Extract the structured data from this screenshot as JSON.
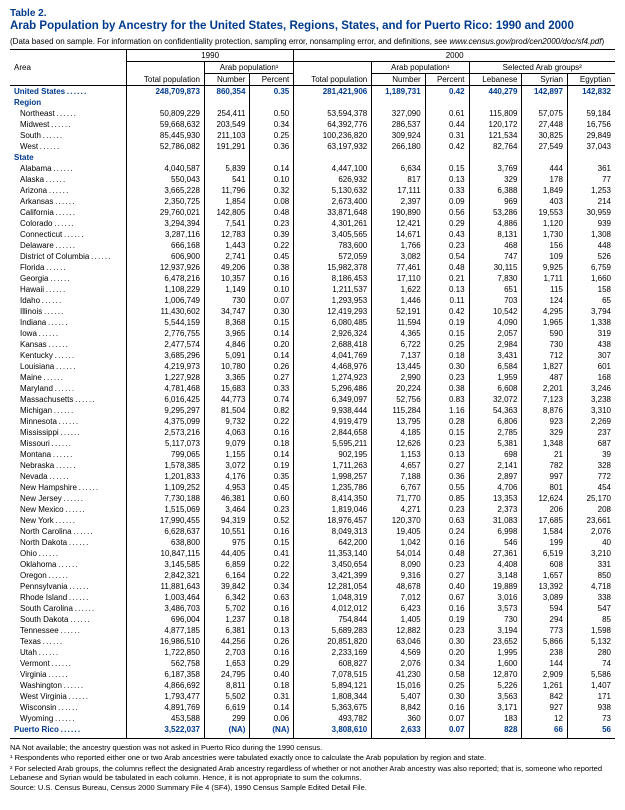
{
  "header": {
    "table_num": "Table 2.",
    "title": "Arab Population by Ancestry for the United States, Regions, States, and for Puerto Rico: 1990 and 2000",
    "subnote_prefix": "(Data based on sample. For information on confidentiality protection, sampling error, nonsampling error, and definitions, see ",
    "subnote_link": "www.census.gov/prod/cen2000/doc/sf4.pdf",
    "subnote_suffix": ")"
  },
  "column_headers": {
    "area": "Area",
    "y1990": "1990",
    "y2000": "2000",
    "arab_pop": "Arab population¹",
    "sel_groups": "Selected Arab groups²",
    "total_pop": "Total population",
    "number": "Number",
    "percent": "Percent",
    "lebanese": "Lebanese",
    "syrian": "Syrian",
    "egyptian": "Egyptian"
  },
  "total_row": {
    "label": "United States",
    "v": [
      "248,709,873",
      "860,354",
      "0.35",
      "281,421,906",
      "1,189,731",
      "0.42",
      "440,279",
      "142,897",
      "142,832"
    ]
  },
  "sections": [
    {
      "label": "Region",
      "rows": [
        {
          "label": "Northeast",
          "v": [
            "50,809,229",
            "254,411",
            "0.50",
            "53,594,378",
            "327,090",
            "0.61",
            "115,809",
            "57,075",
            "59,184"
          ]
        },
        {
          "label": "Midwest",
          "v": [
            "59,668,632",
            "203,549",
            "0.34",
            "64,392,776",
            "286,537",
            "0.44",
            "120,172",
            "27,448",
            "16,756"
          ]
        },
        {
          "label": "South",
          "v": [
            "85,445,930",
            "211,103",
            "0.25",
            "100,236,820",
            "309,924",
            "0.31",
            "121,534",
            "30,825",
            "29,849"
          ]
        },
        {
          "label": "West",
          "v": [
            "52,786,082",
            "191,291",
            "0.36",
            "63,197,932",
            "266,180",
            "0.42",
            "82,764",
            "27,549",
            "37,043"
          ]
        }
      ]
    },
    {
      "label": "State",
      "rows": [
        {
          "label": "Alabama",
          "v": [
            "4,040,587",
            "5,839",
            "0.14",
            "4,447,100",
            "6,634",
            "0.15",
            "3,769",
            "444",
            "361"
          ]
        },
        {
          "label": "Alaska",
          "v": [
            "550,043",
            "541",
            "0.10",
            "626,932",
            "817",
            "0.13",
            "329",
            "178",
            "77"
          ]
        },
        {
          "label": "Arizona",
          "v": [
            "3,665,228",
            "11,796",
            "0.32",
            "5,130,632",
            "17,111",
            "0.33",
            "6,388",
            "1,849",
            "1,253"
          ]
        },
        {
          "label": "Arkansas",
          "v": [
            "2,350,725",
            "1,854",
            "0.08",
            "2,673,400",
            "2,397",
            "0.09",
            "969",
            "403",
            "214"
          ]
        },
        {
          "label": "California",
          "v": [
            "29,760,021",
            "142,805",
            "0.48",
            "33,871,648",
            "190,890",
            "0.56",
            "53,286",
            "19,553",
            "30,959"
          ]
        },
        {
          "label": "Colorado",
          "v": [
            "3,294,394",
            "7,541",
            "0.23",
            "4,301,261",
            "12,421",
            "0.29",
            "4,886",
            "1,120",
            "939"
          ]
        },
        {
          "label": "Connecticut",
          "v": [
            "3,287,116",
            "12,783",
            "0.39",
            "3,405,565",
            "14,671",
            "0.43",
            "8,131",
            "1,730",
            "1,308"
          ]
        },
        {
          "label": "Delaware",
          "v": [
            "666,168",
            "1,443",
            "0.22",
            "783,600",
            "1,766",
            "0.23",
            "468",
            "156",
            "448"
          ]
        },
        {
          "label": "District of Columbia",
          "v": [
            "606,900",
            "2,741",
            "0.45",
            "572,059",
            "3,082",
            "0.54",
            "747",
            "109",
            "526"
          ]
        },
        {
          "label": "Florida",
          "v": [
            "12,937,926",
            "49,206",
            "0.38",
            "15,982,378",
            "77,461",
            "0.48",
            "30,115",
            "9,925",
            "6,759"
          ]
        },
        {
          "label": "Georgia",
          "v": [
            "6,478,216",
            "10,357",
            "0.16",
            "8,186,453",
            "17,110",
            "0.21",
            "7,830",
            "1,711",
            "1,660"
          ]
        },
        {
          "label": "Hawaii",
          "v": [
            "1,108,229",
            "1,149",
            "0.10",
            "1,211,537",
            "1,622",
            "0.13",
            "651",
            "115",
            "158"
          ]
        },
        {
          "label": "Idaho",
          "v": [
            "1,006,749",
            "730",
            "0.07",
            "1,293,953",
            "1,446",
            "0.11",
            "703",
            "124",
            "65"
          ]
        },
        {
          "label": "Illinois",
          "v": [
            "11,430,602",
            "34,747",
            "0.30",
            "12,419,293",
            "52,191",
            "0.42",
            "10,542",
            "4,295",
            "3,794"
          ]
        },
        {
          "label": "Indiana",
          "v": [
            "5,544,159",
            "8,368",
            "0.15",
            "6,080,485",
            "11,594",
            "0.19",
            "4,090",
            "1,965",
            "1,338"
          ]
        },
        {
          "label": "Iowa",
          "v": [
            "2,776,755",
            "3,965",
            "0.14",
            "2,926,324",
            "4,365",
            "0.15",
            "2,057",
            "590",
            "319"
          ]
        },
        {
          "label": "Kansas",
          "v": [
            "2,477,574",
            "4,846",
            "0.20",
            "2,688,418",
            "6,722",
            "0.25",
            "2,984",
            "730",
            "438"
          ]
        },
        {
          "label": "Kentucky",
          "v": [
            "3,685,296",
            "5,091",
            "0.14",
            "4,041,769",
            "7,137",
            "0.18",
            "3,431",
            "712",
            "307"
          ]
        },
        {
          "label": "Louisiana",
          "v": [
            "4,219,973",
            "10,780",
            "0.26",
            "4,468,976",
            "13,445",
            "0.30",
            "6,584",
            "1,827",
            "601"
          ]
        },
        {
          "label": "Maine",
          "v": [
            "1,227,928",
            "3,365",
            "0.27",
            "1,274,923",
            "2,990",
            "0.23",
            "1,959",
            "487",
            "168"
          ]
        },
        {
          "label": "Maryland",
          "v": [
            "4,781,468",
            "15,683",
            "0.33",
            "5,296,486",
            "20,224",
            "0.38",
            "6,608",
            "2,201",
            "3,246"
          ]
        },
        {
          "label": "Massachusetts",
          "v": [
            "6,016,425",
            "44,773",
            "0.74",
            "6,349,097",
            "52,756",
            "0.83",
            "32,072",
            "7,123",
            "3,238"
          ]
        },
        {
          "label": "Michigan",
          "v": [
            "9,295,297",
            "81,504",
            "0.82",
            "9,938,444",
            "115,284",
            "1.16",
            "54,363",
            "8,876",
            "3,310"
          ]
        },
        {
          "label": "Minnesota",
          "v": [
            "4,375,099",
            "9,732",
            "0.22",
            "4,919,479",
            "13,795",
            "0.28",
            "6,806",
            "923",
            "2,269"
          ]
        },
        {
          "label": "Mississippi",
          "v": [
            "2,573,216",
            "4,063",
            "0.16",
            "2,844,658",
            "4,185",
            "0.15",
            "2,785",
            "329",
            "237"
          ]
        },
        {
          "label": "Missouri",
          "v": [
            "5,117,073",
            "9,079",
            "0.18",
            "5,595,211",
            "12,626",
            "0.23",
            "5,381",
            "1,348",
            "687"
          ]
        },
        {
          "label": "Montana",
          "v": [
            "799,065",
            "1,155",
            "0.14",
            "902,195",
            "1,153",
            "0.13",
            "698",
            "21",
            "39"
          ]
        },
        {
          "label": "Nebraska",
          "v": [
            "1,578,385",
            "3,072",
            "0.19",
            "1,711,263",
            "4,657",
            "0.27",
            "2,141",
            "782",
            "328"
          ]
        },
        {
          "label": "Nevada",
          "v": [
            "1,201,833",
            "4,176",
            "0.35",
            "1,998,257",
            "7,188",
            "0.36",
            "2,897",
            "997",
            "772"
          ]
        },
        {
          "label": "New Hampshire",
          "v": [
            "1,109,252",
            "4,953",
            "0.45",
            "1,235,786",
            "6,767",
            "0.55",
            "4,706",
            "801",
            "454"
          ]
        },
        {
          "label": "New Jersey",
          "v": [
            "7,730,188",
            "46,381",
            "0.60",
            "8,414,350",
            "71,770",
            "0.85",
            "13,353",
            "12,624",
            "25,170"
          ]
        },
        {
          "label": "New Mexico",
          "v": [
            "1,515,069",
            "3,464",
            "0.23",
            "1,819,046",
            "4,271",
            "0.23",
            "2,373",
            "206",
            "208"
          ]
        },
        {
          "label": "New York",
          "v": [
            "17,990,455",
            "94,319",
            "0.52",
            "18,976,457",
            "120,370",
            "0.63",
            "31,083",
            "17,685",
            "23,661"
          ]
        },
        {
          "label": "North Carolina",
          "v": [
            "6,628,637",
            "10,551",
            "0.16",
            "8,049,313",
            "19,405",
            "0.24",
            "6,998",
            "1,584",
            "2,076"
          ]
        },
        {
          "label": "North Dakota",
          "v": [
            "638,800",
            "975",
            "0.15",
            "642,200",
            "1,042",
            "0.16",
            "546",
            "199",
            "40"
          ]
        },
        {
          "label": "Ohio",
          "v": [
            "10,847,115",
            "44,405",
            "0.41",
            "11,353,140",
            "54,014",
            "0.48",
            "27,361",
            "6,519",
            "3,210"
          ]
        },
        {
          "label": "Oklahoma",
          "v": [
            "3,145,585",
            "6,859",
            "0.22",
            "3,450,654",
            "8,090",
            "0.23",
            "4,408",
            "608",
            "331"
          ]
        },
        {
          "label": "Oregon",
          "v": [
            "2,842,321",
            "6,164",
            "0.22",
            "3,421,399",
            "9,316",
            "0.27",
            "3,148",
            "1,657",
            "850"
          ]
        },
        {
          "label": "Pennsylvania",
          "v": [
            "11,881,643",
            "39,842",
            "0.34",
            "12,281,054",
            "48,678",
            "0.40",
            "19,889",
            "13,392",
            "4,718"
          ]
        },
        {
          "label": "Rhode Island",
          "v": [
            "1,003,464",
            "6,342",
            "0.63",
            "1,048,319",
            "7,012",
            "0.67",
            "3,016",
            "3,089",
            "338"
          ]
        },
        {
          "label": "South Carolina",
          "v": [
            "3,486,703",
            "5,702",
            "0.16",
            "4,012,012",
            "6,423",
            "0.16",
            "3,573",
            "594",
            "547"
          ]
        },
        {
          "label": "South Dakota",
          "v": [
            "696,004",
            "1,237",
            "0.18",
            "754,844",
            "1,405",
            "0.19",
            "730",
            "294",
            "85"
          ]
        },
        {
          "label": "Tennessee",
          "v": [
            "4,877,185",
            "6,381",
            "0.13",
            "5,689,283",
            "12,882",
            "0.23",
            "3,194",
            "773",
            "1,598"
          ]
        },
        {
          "label": "Texas",
          "v": [
            "16,986,510",
            "44,256",
            "0.26",
            "20,851,820",
            "63,046",
            "0.30",
            "23,652",
            "5,866",
            "5,132"
          ]
        },
        {
          "label": "Utah",
          "v": [
            "1,722,850",
            "2,703",
            "0.16",
            "2,233,169",
            "4,569",
            "0.20",
            "1,995",
            "238",
            "280"
          ]
        },
        {
          "label": "Vermont",
          "v": [
            "562,758",
            "1,653",
            "0.29",
            "608,827",
            "2,076",
            "0.34",
            "1,600",
            "144",
            "74"
          ]
        },
        {
          "label": "Virginia",
          "v": [
            "6,187,358",
            "24,795",
            "0.40",
            "7,078,515",
            "41,230",
            "0.58",
            "12,870",
            "2,909",
            "5,586"
          ]
        },
        {
          "label": "Washington",
          "v": [
            "4,866,692",
            "8,811",
            "0.18",
            "5,894,121",
            "15,016",
            "0.25",
            "5,226",
            "1,261",
            "1,407"
          ]
        },
        {
          "label": "West Virginia",
          "v": [
            "1,793,477",
            "5,502",
            "0.31",
            "1,808,344",
            "5,407",
            "0.30",
            "3,563",
            "842",
            "171"
          ]
        },
        {
          "label": "Wisconsin",
          "v": [
            "4,891,769",
            "6,619",
            "0.14",
            "5,363,675",
            "8,842",
            "0.16",
            "3,171",
            "927",
            "938"
          ]
        },
        {
          "label": "Wyoming",
          "v": [
            "453,588",
            "299",
            "0.06",
            "493,782",
            "360",
            "0.07",
            "183",
            "12",
            "73"
          ]
        }
      ]
    }
  ],
  "pr_row": {
    "label": "Puerto Rico",
    "v": [
      "3,522,037",
      "(NA)",
      "(NA)",
      "3,808,610",
      "2,633",
      "0.07",
      "828",
      "66",
      "56"
    ]
  },
  "footnotes": {
    "na": "NA Not available; the ancestry question was not asked in Puerto Rico during the 1990 census.",
    "f1": "¹ Respondents who reported either one or two Arab ancestries were tabulated exactly once to calculate the Arab population by region and state.",
    "f2": "² For selected Arab groups, the columns reflect the designated Arab ancestry regardless of whether or not another Arab ancestry was also reported; that is, someone who reported Lebanese and Syrian would be tabulated in each column. Hence, it is not appropriate to sum the columns.",
    "source": "Source: U.S. Census Bureau, Census 2000 Summary File 4 (SF4), 1990 Census Sample Edited Detail File."
  }
}
